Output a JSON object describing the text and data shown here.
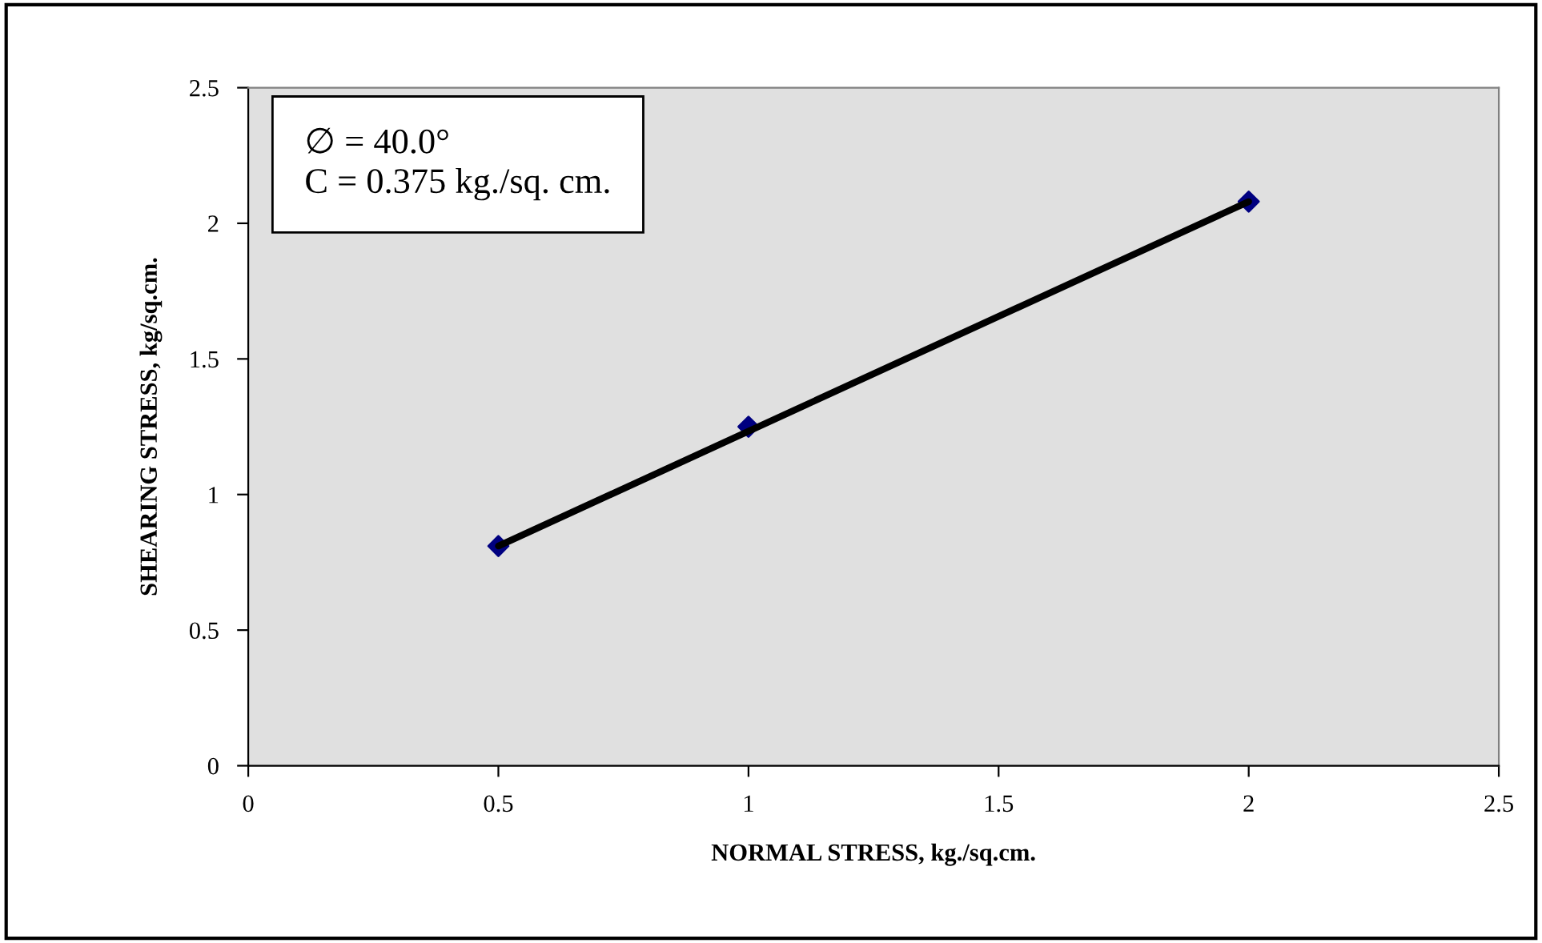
{
  "chart_data": {
    "type": "scatter",
    "xlabel": "NORMAL STRESS, kg./sq.cm.",
    "ylabel": "SHEARING STRESS, kg/sq.cm.",
    "series": [
      {
        "x": [
          0.5,
          1.0,
          2.0
        ],
        "values": [
          0.81,
          1.25,
          2.08
        ],
        "color": "#000080",
        "marker": "diamond"
      },
      {
        "type": "line",
        "x": [
          0.5,
          2.0
        ],
        "values": [
          0.81,
          2.08
        ],
        "color": "#000000",
        "marker": "none",
        "line_style": "solid"
      }
    ],
    "xlim": [
      0,
      2.5
    ],
    "xticks": [
      0,
      0.5,
      1,
      1.5,
      2,
      2.5
    ],
    "ylim": [
      0,
      2.5
    ],
    "yticks": [
      0,
      0.5,
      1,
      1.5,
      2,
      2.5
    ],
    "grid": false,
    "legend": false,
    "annotations": [
      "∅ = 40.0°\nC = 0.375 kg./sq. cm."
    ]
  }
}
